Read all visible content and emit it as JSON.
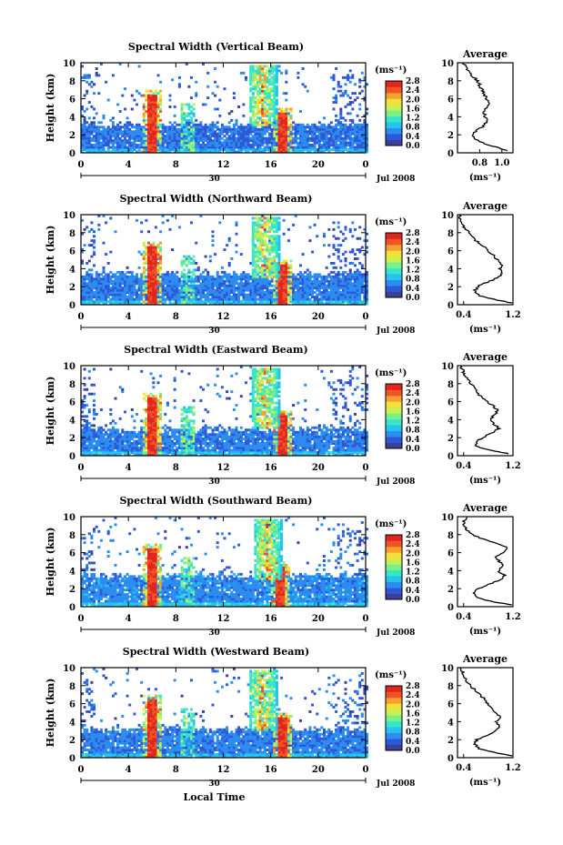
{
  "figure": {
    "xlabel": "Local Time",
    "date_label": "Jul 2008",
    "day_label": "30",
    "colorbar": {
      "unit": "(ms⁻¹)",
      "ticks": [
        "0.0",
        "0.4",
        "0.8",
        "1.2",
        "1.6",
        "2.0",
        "2.4",
        "2.8"
      ],
      "colors": [
        "#3a3f99",
        "#2f58d8",
        "#2c8df0",
        "#27c3f0",
        "#35e6c8",
        "#79f08a",
        "#c7f050",
        "#f4e03a",
        "#f6a02e",
        "#ef5326",
        "#e0261f"
      ]
    },
    "profile_unit": "(ms⁻¹)"
  },
  "chart_data": [
    {
      "type": "heatmap",
      "title": "Spectral Width (Vertical Beam)",
      "ylabel": "Height (km)",
      "xlim": [
        0,
        24
      ],
      "ylim": [
        0,
        10
      ],
      "x_ticks": [
        "0",
        "4",
        "8",
        "12",
        "16",
        "20",
        "0"
      ],
      "y_ticks": [
        "0",
        "2",
        "4",
        "6",
        "8",
        "10"
      ],
      "clim": [
        0.0,
        2.8
      ],
      "features": {
        "bg": 0.35,
        "bl_top": 3.2,
        "rain_times": [
          6.0,
          17.0
        ],
        "conv_time": 15.3
      },
      "profile": {
        "title": "Average",
        "xlim": [
          0.6,
          1.1
        ],
        "x_ticks": [
          "0.8",
          "1.0"
        ],
        "heights": [
          0.2,
          0.5,
          1.0,
          1.5,
          2.0,
          2.5,
          3.0,
          3.5,
          4.0,
          4.5,
          5.0,
          5.5,
          6.0,
          6.5,
          7.0,
          7.5,
          8.0,
          8.5,
          9.0,
          9.5,
          10.0
        ],
        "values": [
          1.05,
          0.98,
          0.85,
          0.76,
          0.74,
          0.78,
          0.84,
          0.86,
          0.85,
          0.84,
          0.86,
          0.88,
          0.86,
          0.84,
          0.82,
          0.8,
          0.78,
          0.74,
          0.7,
          0.67,
          0.65
        ]
      }
    },
    {
      "type": "heatmap",
      "title": "Spectral Width (Northward Beam)",
      "ylabel": "Height (km)",
      "xlim": [
        0,
        24
      ],
      "ylim": [
        0,
        10
      ],
      "x_ticks": [
        "0",
        "4",
        "8",
        "12",
        "16",
        "20",
        "0"
      ],
      "y_ticks": [
        "0",
        "2",
        "4",
        "6",
        "8",
        "10"
      ],
      "clim": [
        0.0,
        2.8
      ],
      "features": {
        "bg": 0.4,
        "bl_top": 3.5,
        "rain_times": [
          6.0,
          17.0
        ],
        "conv_time": 15.5
      },
      "profile": {
        "title": "Average",
        "xlim": [
          0.3,
          1.2
        ],
        "x_ticks": [
          "0.4",
          "1.2"
        ],
        "heights": [
          0.2,
          0.5,
          1.0,
          1.5,
          2.0,
          2.5,
          3.0,
          3.5,
          4.0,
          4.5,
          5.0,
          5.5,
          6.0,
          6.5,
          7.0,
          7.5,
          8.0,
          8.5,
          9.0,
          9.5,
          10.0
        ],
        "values": [
          1.18,
          0.95,
          0.66,
          0.58,
          0.62,
          0.78,
          0.95,
          1.05,
          0.98,
          1.02,
          0.94,
          0.88,
          0.8,
          0.72,
          0.62,
          0.55,
          0.48,
          0.42,
          0.38,
          0.35,
          0.33
        ]
      }
    },
    {
      "type": "heatmap",
      "title": "Spectral Width (Eastward Beam)",
      "ylabel": "Height (km)",
      "xlim": [
        0,
        24
      ],
      "ylim": [
        0,
        10
      ],
      "x_ticks": [
        "0",
        "4",
        "8",
        "12",
        "16",
        "20",
        "0"
      ],
      "y_ticks": [
        "0",
        "2",
        "4",
        "6",
        "8",
        "10"
      ],
      "clim": [
        0.0,
        2.8
      ],
      "features": {
        "bg": 0.4,
        "bl_top": 3.0,
        "rain_times": [
          6.0,
          17.0
        ],
        "conv_time": 15.5
      },
      "profile": {
        "title": "Average",
        "xlim": [
          0.3,
          1.2
        ],
        "x_ticks": [
          "0.4",
          "1.2"
        ],
        "heights": [
          0.2,
          0.5,
          1.0,
          1.5,
          2.0,
          2.5,
          3.0,
          3.5,
          4.0,
          4.5,
          5.0,
          5.5,
          6.0,
          6.5,
          7.0,
          7.5,
          8.0,
          8.5,
          9.0,
          9.5,
          10.0
        ],
        "values": [
          1.15,
          0.92,
          0.62,
          0.6,
          0.7,
          0.85,
          0.98,
          0.9,
          0.82,
          0.9,
          0.96,
          0.88,
          0.78,
          0.7,
          0.62,
          0.56,
          0.52,
          0.48,
          0.42,
          0.38,
          0.35
        ]
      }
    },
    {
      "type": "heatmap",
      "title": "Spectral Width (Southward Beam)",
      "ylabel": "Height (km)",
      "xlim": [
        0,
        24
      ],
      "ylim": [
        0,
        10
      ],
      "x_ticks": [
        "0",
        "4",
        "8",
        "12",
        "16",
        "20",
        "0"
      ],
      "y_ticks": [
        "0",
        "2",
        "4",
        "6",
        "8",
        "10"
      ],
      "clim": [
        0.0,
        2.8
      ],
      "features": {
        "bg": 0.45,
        "bl_top": 3.5,
        "rain_times": [
          6.0,
          16.8
        ],
        "conv_time": 15.7
      },
      "profile": {
        "title": "Average",
        "xlim": [
          0.3,
          1.2
        ],
        "x_ticks": [
          "0.4",
          "1.2"
        ],
        "heights": [
          0.2,
          0.5,
          1.0,
          1.5,
          2.0,
          2.5,
          3.0,
          3.5,
          4.0,
          4.5,
          5.0,
          5.5,
          6.0,
          6.5,
          7.0,
          7.5,
          8.0,
          8.5,
          9.0,
          9.5,
          10.0
        ],
        "values": [
          1.18,
          0.9,
          0.62,
          0.58,
          0.64,
          0.82,
          1.0,
          1.06,
          0.96,
          1.04,
          0.98,
          0.92,
          1.06,
          1.12,
          0.95,
          0.72,
          0.55,
          0.46,
          0.42,
          0.4,
          0.45
        ]
      }
    },
    {
      "type": "heatmap",
      "title": "Spectral Width (Westward Beam)",
      "ylabel": "Height (km)",
      "xlim": [
        0,
        24
      ],
      "ylim": [
        0,
        10
      ],
      "x_ticks": [
        "0",
        "4",
        "8",
        "12",
        "16",
        "20",
        "0"
      ],
      "y_ticks": [
        "0",
        "2",
        "4",
        "6",
        "8",
        "10"
      ],
      "clim": [
        0.0,
        2.8
      ],
      "features": {
        "bg": 0.4,
        "bl_top": 3.2,
        "rain_times": [
          6.0,
          17.0
        ],
        "conv_time": 15.3
      },
      "profile": {
        "title": "Average",
        "xlim": [
          0.3,
          1.2
        ],
        "x_ticks": [
          "0.4",
          "1.2"
        ],
        "heights": [
          0.2,
          0.5,
          1.0,
          1.5,
          2.0,
          2.5,
          3.0,
          3.5,
          4.0,
          4.5,
          5.0,
          5.5,
          6.0,
          6.5,
          7.0,
          7.5,
          8.0,
          8.5,
          9.0,
          9.5,
          10.0
        ],
        "values": [
          1.2,
          0.95,
          0.64,
          0.58,
          0.62,
          0.78,
          0.92,
          0.98,
          0.94,
          0.98,
          0.92,
          0.86,
          0.8,
          0.74,
          0.66,
          0.58,
          0.52,
          0.46,
          0.42,
          0.38,
          0.34
        ]
      }
    }
  ]
}
